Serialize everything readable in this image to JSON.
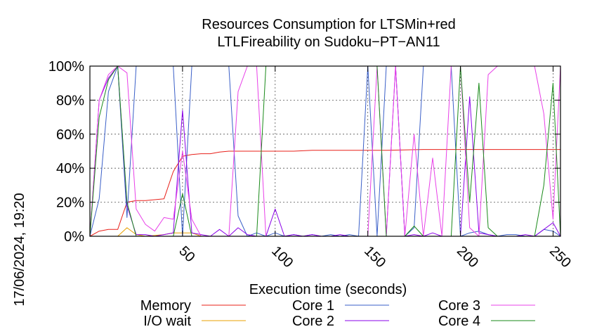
{
  "chart_data": {
    "type": "line",
    "title": "Resources Consumption for LTSMin+red",
    "subtitle": "LTLFireability on Sudoku−PT−AN11",
    "xlabel": "Execution time (seconds)",
    "ylabel": "",
    "timestamp": "17/06/2024, 19:20",
    "xlim": [
      0,
      254
    ],
    "ylim": [
      0,
      100
    ],
    "x_ticks": [
      50,
      100,
      150,
      200,
      250
    ],
    "x_tick_labels": [
      "50",
      "100",
      "150",
      "200",
      "250"
    ],
    "y_ticks": [
      0,
      20,
      40,
      60,
      80,
      100
    ],
    "y_tick_labels": [
      "0%",
      "20%",
      "40%",
      "60%",
      "80%",
      "100%"
    ],
    "grid": true,
    "legend_position": "bottom",
    "series": [
      {
        "name": "Memory",
        "color": "#e8201a",
        "points": [
          [
            0,
            0
          ],
          [
            5,
            3
          ],
          [
            10,
            4
          ],
          [
            15,
            4
          ],
          [
            20,
            20
          ],
          [
            25,
            21
          ],
          [
            30,
            21
          ],
          [
            35,
            21.5
          ],
          [
            40,
            22
          ],
          [
            45,
            38
          ],
          [
            50,
            47
          ],
          [
            55,
            48
          ],
          [
            60,
            48.5
          ],
          [
            65,
            48.5
          ],
          [
            70,
            49.5
          ],
          [
            75,
            50
          ],
          [
            80,
            50
          ],
          [
            90,
            50
          ],
          [
            100,
            50
          ],
          [
            110,
            50
          ],
          [
            120,
            50.5
          ],
          [
            140,
            50.5
          ],
          [
            160,
            50.5
          ],
          [
            180,
            51
          ],
          [
            200,
            51
          ],
          [
            220,
            51
          ],
          [
            240,
            51
          ],
          [
            254,
            51
          ]
        ]
      },
      {
        "name": "I/O wait",
        "color": "#e8a000",
        "points": [
          [
            0,
            0
          ],
          [
            5,
            0
          ],
          [
            10,
            0
          ],
          [
            15,
            0
          ],
          [
            20,
            5
          ],
          [
            25,
            1
          ],
          [
            30,
            0
          ],
          [
            40,
            1
          ],
          [
            45,
            2
          ],
          [
            50,
            2
          ],
          [
            55,
            2
          ],
          [
            60,
            0
          ],
          [
            70,
            0
          ],
          [
            80,
            0
          ],
          [
            100,
            0
          ],
          [
            150,
            0
          ],
          [
            200,
            0
          ],
          [
            254,
            0
          ]
        ]
      },
      {
        "name": "Core 1",
        "color": "#3a5fc8",
        "points": [
          [
            0,
            0
          ],
          [
            5,
            22
          ],
          [
            10,
            85
          ],
          [
            15,
            100
          ],
          [
            20,
            11
          ],
          [
            25,
            100
          ],
          [
            30,
            100
          ],
          [
            35,
            100
          ],
          [
            40,
            100
          ],
          [
            45,
            100
          ],
          [
            50,
            0
          ],
          [
            55,
            100
          ],
          [
            60,
            100
          ],
          [
            65,
            100
          ],
          [
            70,
            100
          ],
          [
            75,
            100
          ],
          [
            80,
            12
          ],
          [
            85,
            0
          ],
          [
            90,
            2
          ],
          [
            95,
            0
          ],
          [
            100,
            2
          ],
          [
            105,
            0
          ],
          [
            110,
            1
          ],
          [
            115,
            0
          ],
          [
            120,
            1
          ],
          [
            125,
            0
          ],
          [
            130,
            1
          ],
          [
            135,
            0
          ],
          [
            140,
            1
          ],
          [
            145,
            0
          ],
          [
            150,
            100
          ],
          [
            155,
            0
          ],
          [
            160,
            100
          ],
          [
            165,
            100
          ],
          [
            170,
            0
          ],
          [
            175,
            5
          ],
          [
            180,
            100
          ],
          [
            185,
            100
          ],
          [
            190,
            100
          ],
          [
            195,
            100
          ],
          [
            200,
            0
          ],
          [
            205,
            2
          ],
          [
            210,
            3
          ],
          [
            215,
            1
          ],
          [
            220,
            0
          ],
          [
            225,
            1
          ],
          [
            230,
            1
          ],
          [
            235,
            0
          ],
          [
            240,
            0
          ],
          [
            245,
            4
          ],
          [
            250,
            3
          ],
          [
            254,
            0
          ]
        ]
      },
      {
        "name": "Core 2",
        "color": "#8a00e8",
        "points": [
          [
            0,
            0
          ],
          [
            5,
            80
          ],
          [
            10,
            93
          ],
          [
            15,
            100
          ],
          [
            20,
            18
          ],
          [
            25,
            1
          ],
          [
            30,
            1
          ],
          [
            35,
            0
          ],
          [
            40,
            1
          ],
          [
            45,
            2
          ],
          [
            50,
            74
          ],
          [
            55,
            2
          ],
          [
            60,
            1
          ],
          [
            65,
            0
          ],
          [
            70,
            4
          ],
          [
            75,
            0
          ],
          [
            80,
            5
          ],
          [
            85,
            1
          ],
          [
            90,
            0
          ],
          [
            95,
            0
          ],
          [
            100,
            16
          ],
          [
            105,
            0
          ],
          [
            110,
            1
          ],
          [
            115,
            0
          ],
          [
            120,
            1
          ],
          [
            125,
            0
          ],
          [
            130,
            0
          ],
          [
            135,
            1
          ],
          [
            140,
            0
          ],
          [
            145,
            0
          ],
          [
            150,
            0
          ],
          [
            155,
            0
          ],
          [
            160,
            0
          ],
          [
            165,
            100
          ],
          [
            170,
            0
          ],
          [
            175,
            1
          ],
          [
            180,
            0
          ],
          [
            185,
            2
          ],
          [
            190,
            0
          ],
          [
            195,
            0
          ],
          [
            200,
            0
          ],
          [
            205,
            82
          ],
          [
            210,
            2
          ],
          [
            215,
            1
          ],
          [
            220,
            0
          ],
          [
            225,
            0
          ],
          [
            230,
            0
          ],
          [
            235,
            1
          ],
          [
            240,
            0
          ],
          [
            245,
            4
          ],
          [
            250,
            8
          ],
          [
            254,
            0
          ]
        ]
      },
      {
        "name": "Core 3",
        "color": "#e840e8",
        "points": [
          [
            0,
            0
          ],
          [
            5,
            80
          ],
          [
            10,
            95
          ],
          [
            15,
            100
          ],
          [
            20,
            96
          ],
          [
            25,
            16
          ],
          [
            30,
            7
          ],
          [
            35,
            3
          ],
          [
            40,
            11
          ],
          [
            45,
            10
          ],
          [
            50,
            50
          ],
          [
            55,
            10
          ],
          [
            60,
            0
          ],
          [
            65,
            0
          ],
          [
            70,
            0
          ],
          [
            75,
            0
          ],
          [
            80,
            85
          ],
          [
            85,
            100
          ],
          [
            90,
            100
          ],
          [
            95,
            0
          ],
          [
            100,
            0
          ],
          [
            110,
            0
          ],
          [
            120,
            0
          ],
          [
            130,
            0
          ],
          [
            140,
            0
          ],
          [
            150,
            0
          ],
          [
            155,
            100
          ],
          [
            160,
            0
          ],
          [
            165,
            100
          ],
          [
            170,
            0
          ],
          [
            175,
            60
          ],
          [
            180,
            0
          ],
          [
            185,
            46
          ],
          [
            190,
            0
          ],
          [
            195,
            100
          ],
          [
            200,
            100
          ],
          [
            205,
            5
          ],
          [
            210,
            0
          ],
          [
            215,
            95
          ],
          [
            220,
            100
          ],
          [
            225,
            100
          ],
          [
            230,
            100
          ],
          [
            235,
            100
          ],
          [
            240,
            100
          ],
          [
            245,
            72
          ],
          [
            250,
            10
          ],
          [
            254,
            100
          ]
        ]
      },
      {
        "name": "Core 4",
        "color": "#1a8a1a",
        "points": [
          [
            0,
            0
          ],
          [
            5,
            70
          ],
          [
            10,
            92
          ],
          [
            15,
            100
          ],
          [
            20,
            20
          ],
          [
            25,
            0
          ],
          [
            30,
            0
          ],
          [
            40,
            0
          ],
          [
            45,
            0
          ],
          [
            50,
            25
          ],
          [
            55,
            0
          ],
          [
            60,
            0
          ],
          [
            70,
            0
          ],
          [
            80,
            0
          ],
          [
            90,
            0
          ],
          [
            95,
            100
          ],
          [
            100,
            100
          ],
          [
            110,
            100
          ],
          [
            120,
            100
          ],
          [
            130,
            100
          ],
          [
            140,
            100
          ],
          [
            150,
            100
          ],
          [
            155,
            100
          ],
          [
            160,
            0
          ],
          [
            165,
            0
          ],
          [
            170,
            0
          ],
          [
            175,
            6
          ],
          [
            180,
            0
          ],
          [
            185,
            0
          ],
          [
            190,
            0
          ],
          [
            195,
            0
          ],
          [
            200,
            100
          ],
          [
            205,
            20
          ],
          [
            210,
            90
          ],
          [
            215,
            5
          ],
          [
            220,
            0
          ],
          [
            225,
            0
          ],
          [
            230,
            0
          ],
          [
            235,
            0
          ],
          [
            240,
            0
          ],
          [
            245,
            30
          ],
          [
            250,
            90
          ],
          [
            254,
            0
          ]
        ]
      }
    ]
  }
}
